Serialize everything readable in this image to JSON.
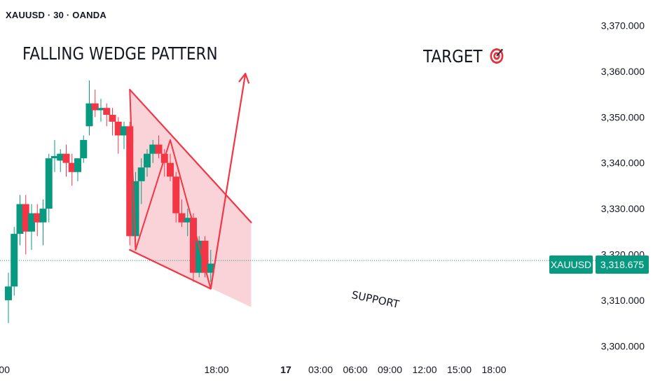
{
  "header": {
    "symbol_line": "XAUUSD · 30 · OANDA"
  },
  "annotations": {
    "pattern_title": "FALLING WEDGE PATTERN",
    "target_label": "TARGET",
    "target_icon": "bullseye-icon",
    "support_label": "SUPPORT"
  },
  "price_tag": {
    "symbol": "XAUUSD",
    "price": "3,318.675",
    "color": "#089981"
  },
  "colors": {
    "up": "#089981",
    "down": "#f23645",
    "wedge_fill": "#f7c4c9",
    "wedge_line": "#f23645"
  },
  "chart_data": {
    "type": "candlestick",
    "symbol": "XAUUSD",
    "timeframe": "30",
    "source": "OANDA",
    "y_ticks": [
      "3,370.000",
      "3,360.000",
      "3,350.000",
      "3,340.000",
      "3,330.000",
      "3,320.000",
      "3,310.000",
      "3,300.000"
    ],
    "x_ticks": [
      "00",
      "18:00",
      "17",
      "03:00",
      "06:00",
      "09:00",
      "12:00",
      "15:00",
      "18:00"
    ],
    "x_tick_times": [
      0,
      18,
      24,
      27,
      30,
      33,
      36,
      39,
      42
    ],
    "ylim": [
      3295.5,
      3373.5
    ],
    "last_price": 3318.675,
    "candles": [
      {
        "t": 0.0,
        "o": 3310,
        "h": 3316,
        "l": 3305,
        "c": 3313
      },
      {
        "t": 0.5,
        "o": 3313,
        "h": 3326,
        "l": 3311,
        "c": 3324.5
      },
      {
        "t": 1.0,
        "o": 3324.5,
        "h": 3333,
        "l": 3322,
        "c": 3331
      },
      {
        "t": 1.5,
        "o": 3331,
        "h": 3333,
        "l": 3320,
        "c": 3325
      },
      {
        "t": 2.0,
        "o": 3325,
        "h": 3331,
        "l": 3321,
        "c": 3329
      },
      {
        "t": 2.5,
        "o": 3329,
        "h": 3331,
        "l": 3324,
        "c": 3327
      },
      {
        "t": 3.0,
        "o": 3327,
        "h": 3332,
        "l": 3322,
        "c": 3330
      },
      {
        "t": 3.5,
        "o": 3330,
        "h": 3342,
        "l": 3327,
        "c": 3341
      },
      {
        "t": 4.0,
        "o": 3341,
        "h": 3345,
        "l": 3338,
        "c": 3341.5
      },
      {
        "t": 4.5,
        "o": 3340.5,
        "h": 3343,
        "l": 3338,
        "c": 3342
      },
      {
        "t": 5.0,
        "o": 3342,
        "h": 3344,
        "l": 3337,
        "c": 3340
      },
      {
        "t": 5.5,
        "o": 3340,
        "h": 3342,
        "l": 3335,
        "c": 3338
      },
      {
        "t": 6.0,
        "o": 3338,
        "h": 3341,
        "l": 3336,
        "c": 3341
      },
      {
        "t": 6.5,
        "o": 3341,
        "h": 3346,
        "l": 3340,
        "c": 3345
      },
      {
        "t": 7.0,
        "o": 3348,
        "h": 3358,
        "l": 3346,
        "c": 3353
      },
      {
        "t": 7.5,
        "o": 3353,
        "h": 3356,
        "l": 3350,
        "c": 3351.5
      },
      {
        "t": 8.0,
        "o": 3351.5,
        "h": 3354,
        "l": 3349,
        "c": 3352
      },
      {
        "t": 8.5,
        "o": 3352,
        "h": 3353,
        "l": 3348,
        "c": 3350.5
      },
      {
        "t": 9.0,
        "o": 3350.5,
        "h": 3352,
        "l": 3346,
        "c": 3349
      },
      {
        "t": 9.5,
        "o": 3349,
        "h": 3350,
        "l": 3342,
        "c": 3346
      },
      {
        "t": 10.0,
        "o": 3346,
        "h": 3349,
        "l": 3343,
        "c": 3348
      },
      {
        "t": 10.5,
        "o": 3348,
        "h": 3349,
        "l": 3322,
        "c": 3324
      },
      {
        "t": 11.0,
        "o": 3324,
        "h": 3338,
        "l": 3321,
        "c": 3336
      },
      {
        "t": 11.5,
        "o": 3336,
        "h": 3341,
        "l": 3331,
        "c": 3339
      },
      {
        "t": 12.0,
        "o": 3339,
        "h": 3343,
        "l": 3337,
        "c": 3342
      },
      {
        "t": 12.5,
        "o": 3342,
        "h": 3345,
        "l": 3340,
        "c": 3344
      },
      {
        "t": 13.0,
        "o": 3344,
        "h": 3346,
        "l": 3341,
        "c": 3342
      },
      {
        "t": 13.5,
        "o": 3342,
        "h": 3343,
        "l": 3337,
        "c": 3340
      },
      {
        "t": 14.0,
        "o": 3340,
        "h": 3342,
        "l": 3336,
        "c": 3337
      },
      {
        "t": 14.5,
        "o": 3337,
        "h": 3338,
        "l": 3327,
        "c": 3329
      },
      {
        "t": 15.0,
        "o": 3329,
        "h": 3332,
        "l": 3326,
        "c": 3327
      },
      {
        "t": 15.5,
        "o": 3327,
        "h": 3330,
        "l": 3324,
        "c": 3328
      },
      {
        "t": 16.0,
        "o": 3328,
        "h": 3329,
        "l": 3314,
        "c": 3316
      },
      {
        "t": 16.5,
        "o": 3316,
        "h": 3324,
        "l": 3315,
        "c": 3323
      },
      {
        "t": 17.0,
        "o": 3323,
        "h": 3324,
        "l": 3315,
        "c": 3316
      },
      {
        "t": 17.5,
        "o": 3316,
        "h": 3321,
        "l": 3314,
        "c": 3318
      }
    ],
    "wedge": {
      "upper_line": [
        {
          "t": 10.5,
          "p": 3356
        },
        {
          "t": 21,
          "p": 3327
        }
      ],
      "lower_line": [
        {
          "t": 10.5,
          "p": 3321
        },
        {
          "t": 17.5,
          "p": 3312.5
        }
      ],
      "zigzag": [
        {
          "t": 10.5,
          "p": 3356
        },
        {
          "t": 11.0,
          "p": 3321
        },
        {
          "t": 14.0,
          "p": 3345
        },
        {
          "t": 17.5,
          "p": 3312.5
        }
      ],
      "breakout_arrow": [
        {
          "t": 17.5,
          "p": 3312.5
        },
        {
          "t": 20.5,
          "p": 3359.5
        }
      ]
    }
  }
}
